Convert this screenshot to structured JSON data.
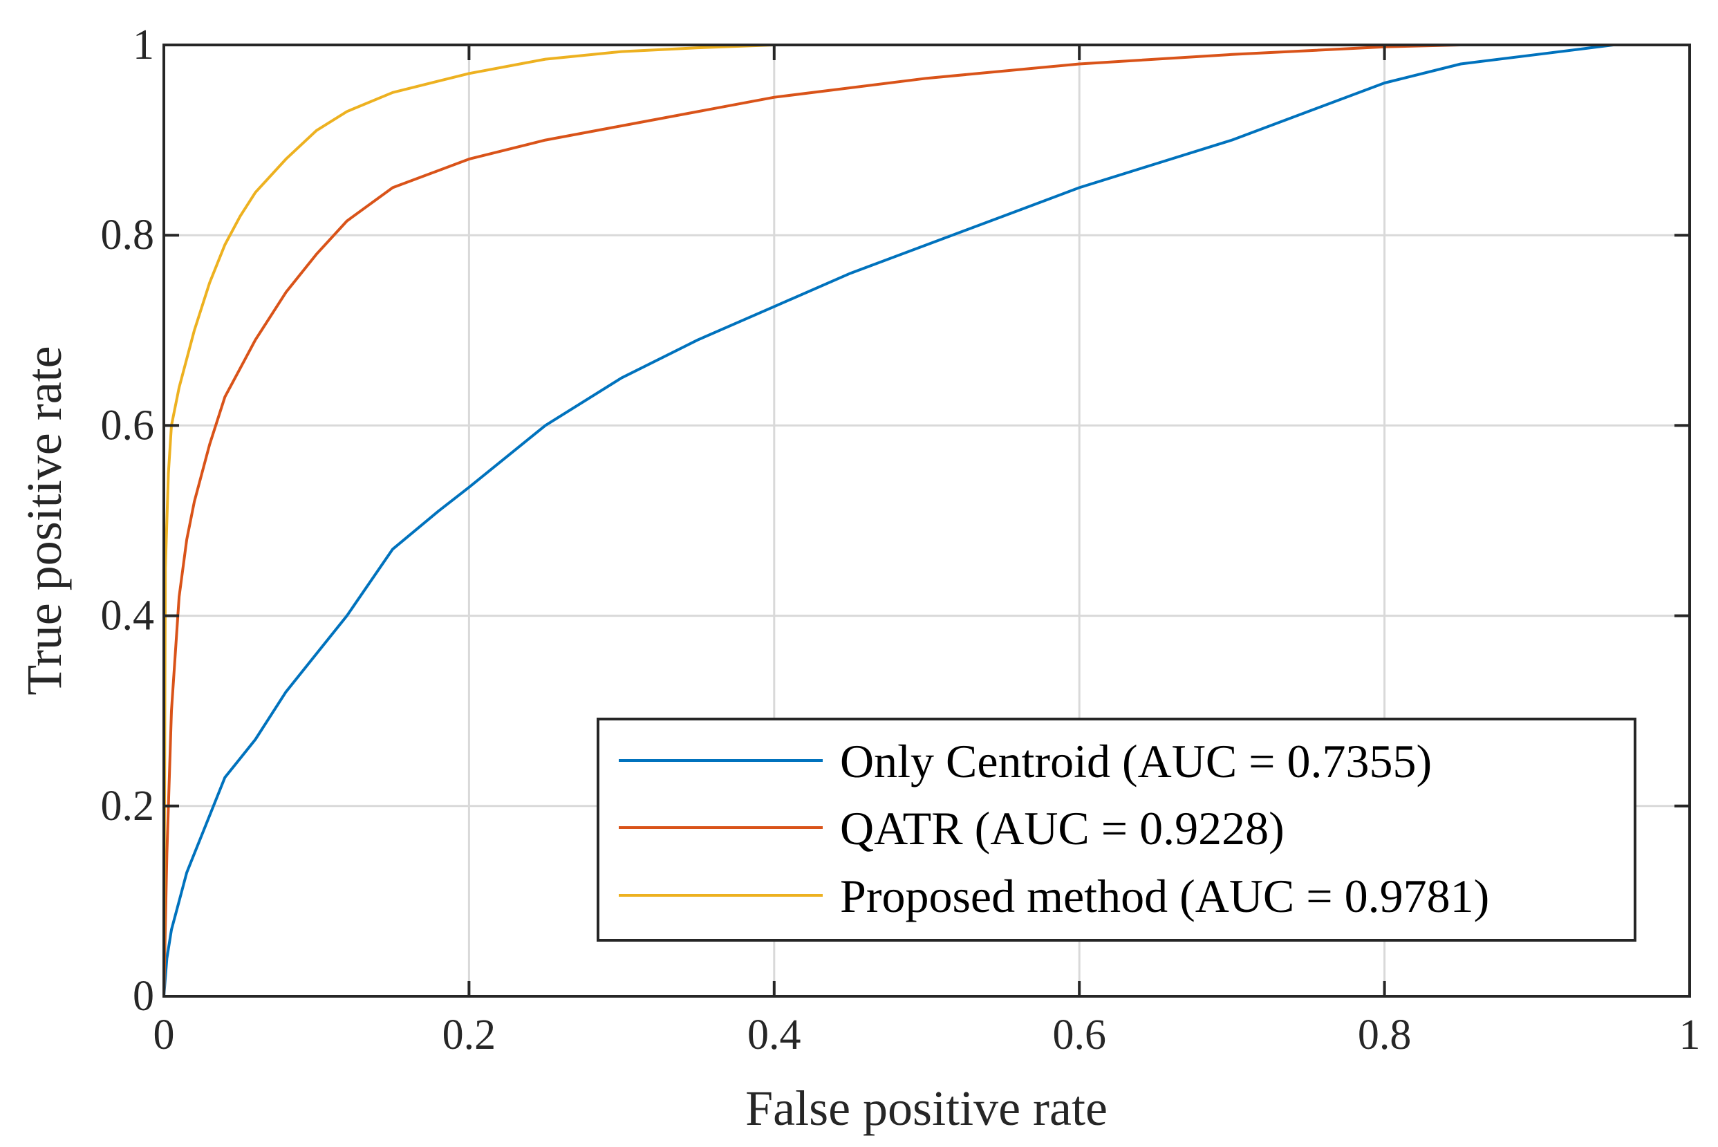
{
  "chart_data": {
    "type": "line",
    "title": "",
    "xlabel": "False positive rate",
    "ylabel": "True positive rate",
    "xlim": [
      0,
      1
    ],
    "ylim": [
      0,
      1
    ],
    "grid": true,
    "legend_location": "bottom-right",
    "x_ticks": [
      0,
      0.2,
      0.4,
      0.6,
      0.8,
      1
    ],
    "x_tick_labels": [
      "0",
      "0.2",
      "0.4",
      "0.6",
      "0.8",
      "1"
    ],
    "y_ticks": [
      0,
      0.2,
      0.4,
      0.6,
      0.8,
      1
    ],
    "y_tick_labels": [
      "0",
      "0.2",
      "0.4",
      "0.6",
      "0.8",
      "1"
    ],
    "series": [
      {
        "name": "Only Centroid (AUC = 0.7355)",
        "color": "#0072BD",
        "x": [
          0,
          0.002,
          0.005,
          0.01,
          0.015,
          0.02,
          0.03,
          0.04,
          0.05,
          0.06,
          0.08,
          0.1,
          0.12,
          0.15,
          0.18,
          0.2,
          0.25,
          0.3,
          0.35,
          0.4,
          0.45,
          0.5,
          0.55,
          0.6,
          0.65,
          0.7,
          0.75,
          0.8,
          0.85,
          0.9,
          0.95,
          1
        ],
        "y": [
          0,
          0.04,
          0.07,
          0.1,
          0.13,
          0.15,
          0.19,
          0.23,
          0.25,
          0.27,
          0.32,
          0.36,
          0.4,
          0.47,
          0.51,
          0.535,
          0.6,
          0.65,
          0.69,
          0.725,
          0.76,
          0.79,
          0.82,
          0.85,
          0.875,
          0.9,
          0.93,
          0.96,
          0.98,
          0.99,
          1.0,
          1.0
        ]
      },
      {
        "name": "QATR (AUC = 0.9228)",
        "color": "#D95319",
        "x": [
          0,
          0.002,
          0.005,
          0.01,
          0.015,
          0.02,
          0.03,
          0.04,
          0.05,
          0.06,
          0.08,
          0.1,
          0.12,
          0.15,
          0.2,
          0.25,
          0.3,
          0.4,
          0.5,
          0.6,
          0.7,
          0.8,
          0.85,
          0.9,
          0.95,
          1
        ],
        "y": [
          0,
          0.15,
          0.3,
          0.42,
          0.48,
          0.52,
          0.58,
          0.63,
          0.66,
          0.69,
          0.74,
          0.78,
          0.815,
          0.85,
          0.88,
          0.9,
          0.915,
          0.945,
          0.965,
          0.98,
          0.99,
          0.998,
          1.0,
          1.0,
          1.0,
          1.0
        ]
      },
      {
        "name": "Proposed method (AUC = 0.9781)",
        "color": "#EDB120",
        "x": [
          0,
          0.001,
          0.003,
          0.005,
          0.01,
          0.015,
          0.02,
          0.03,
          0.04,
          0.05,
          0.06,
          0.08,
          0.1,
          0.12,
          0.15,
          0.2,
          0.25,
          0.3,
          0.35,
          0.4,
          0.5,
          1
        ],
        "y": [
          0,
          0.45,
          0.55,
          0.6,
          0.64,
          0.67,
          0.7,
          0.75,
          0.79,
          0.82,
          0.845,
          0.88,
          0.91,
          0.93,
          0.95,
          0.97,
          0.985,
          0.993,
          0.997,
          1.0,
          1.0,
          1.0
        ]
      }
    ]
  }
}
